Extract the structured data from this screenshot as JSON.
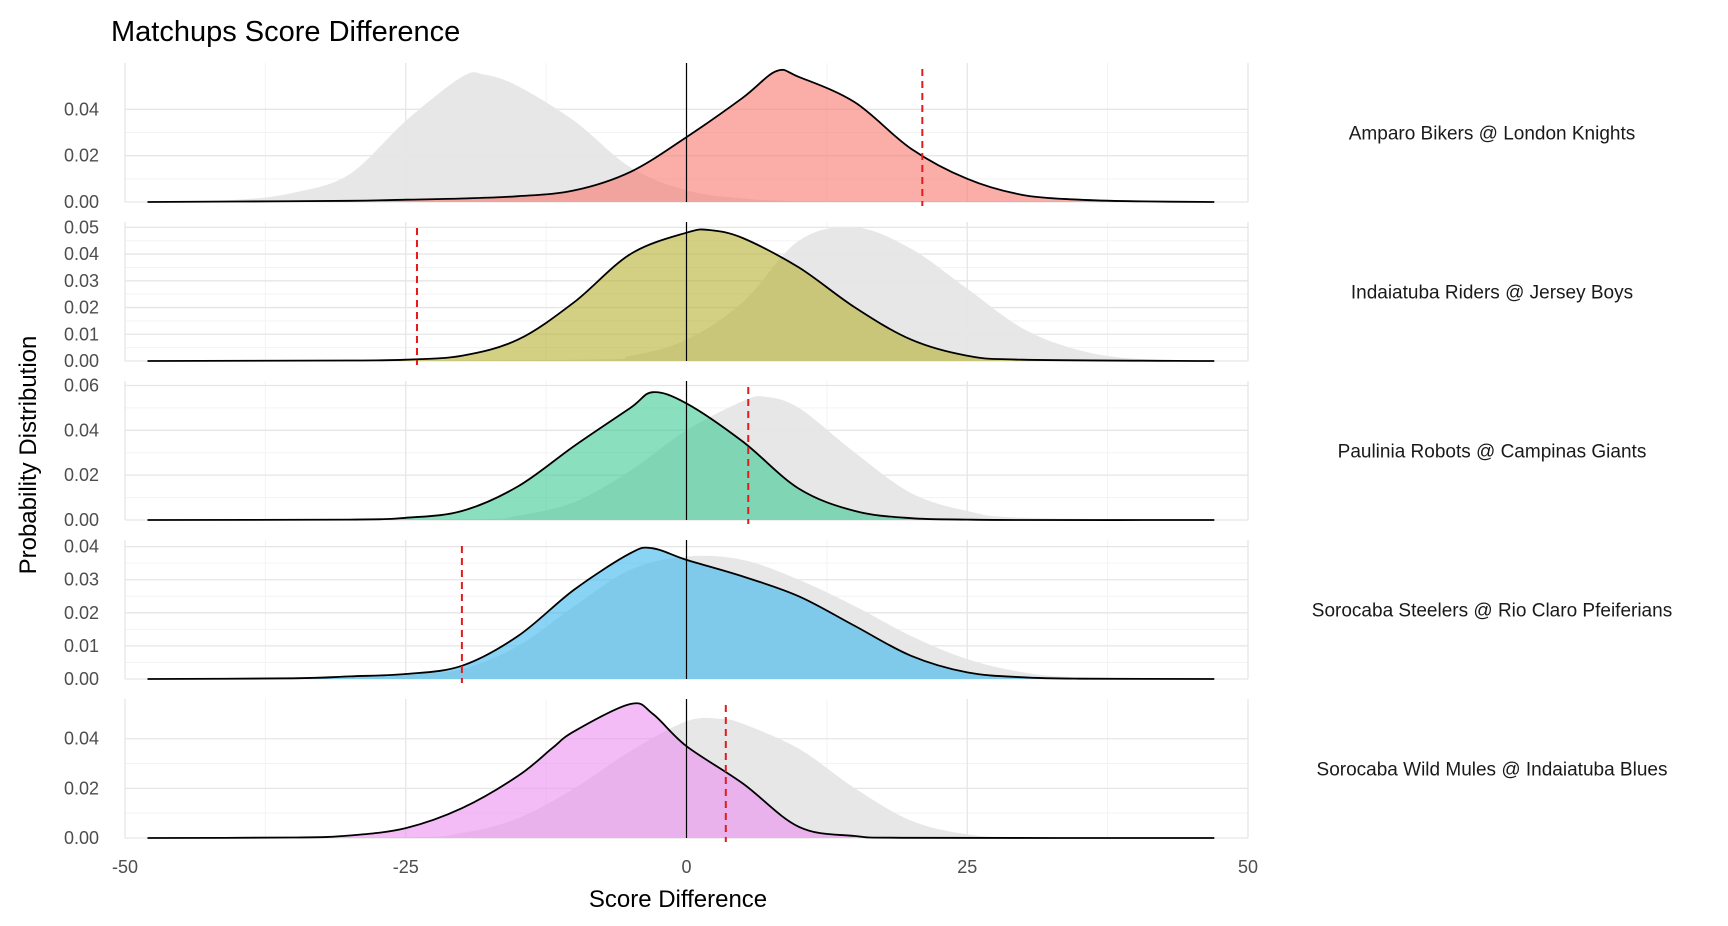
{
  "chart_data": {
    "type": "area",
    "title": "Matchups Score Difference",
    "xlabel": "Score Difference",
    "ylabel": "Probability Distribution",
    "xlim": [
      -50,
      50
    ],
    "x_ticks": [
      -50,
      -25,
      0,
      25,
      50
    ],
    "x_tick_labels": [
      "-50",
      "-25",
      "0",
      "25",
      "50"
    ],
    "zero_line": 0,
    "grid": true,
    "background_color": "#e6e6e6",
    "vline_color": "#e41a1c",
    "panels": [
      {
        "name": "Amparo Bikers @ London Knights",
        "color": "#f8766d",
        "ylim": [
          0,
          0.06
        ],
        "y_ticks": [
          0,
          0.02,
          0.04
        ],
        "y_tick_labels": [
          "0.00",
          "0.02",
          "0.04"
        ],
        "vline": 21,
        "x": [
          -48,
          -40,
          -30,
          -25,
          -20,
          -15,
          -10,
          -5,
          0,
          5,
          8,
          10,
          15,
          20,
          25,
          30,
          35,
          40,
          47
        ],
        "y": [
          0,
          0.0002,
          0.0005,
          0.001,
          0.0015,
          0.0025,
          0.005,
          0.013,
          0.028,
          0.045,
          0.0565,
          0.054,
          0.043,
          0.023,
          0.01,
          0.003,
          0.001,
          0.0003,
          0
        ],
        "background_x": [
          -48,
          -40,
          -35,
          -30,
          -25,
          -20,
          -18,
          -15,
          -10,
          -5,
          0,
          5,
          10,
          15
        ],
        "background_y": [
          0,
          0.001,
          0.004,
          0.012,
          0.035,
          0.054,
          0.055,
          0.05,
          0.035,
          0.015,
          0.005,
          0.0015,
          0.0003,
          0
        ]
      },
      {
        "name": "Indaiatuba Riders @ Jersey Boys",
        "color": "#b8b030",
        "ylim": [
          0,
          0.052
        ],
        "y_ticks": [
          0,
          0.01,
          0.02,
          0.03,
          0.04,
          0.05
        ],
        "y_tick_labels": [
          "0.00",
          "0.01",
          "0.02",
          "0.03",
          "0.04",
          "0.05"
        ],
        "vline": -24,
        "x": [
          -48,
          -30,
          -25,
          -20,
          -15,
          -10,
          -5,
          0,
          2,
          5,
          10,
          15,
          20,
          25,
          30,
          47
        ],
        "y": [
          0,
          0.0002,
          0.0005,
          0.002,
          0.008,
          0.022,
          0.04,
          0.048,
          0.049,
          0.046,
          0.035,
          0.02,
          0.008,
          0.002,
          0.0005,
          0
        ],
        "background_x": [
          -48,
          -10,
          -5,
          0,
          5,
          10,
          15,
          20,
          25,
          30,
          35,
          40,
          47
        ],
        "background_y": [
          0,
          0.0005,
          0.002,
          0.008,
          0.022,
          0.045,
          0.05,
          0.042,
          0.027,
          0.012,
          0.004,
          0.0008,
          0
        ]
      },
      {
        "name": "Paulinia Robots @ Campinas Giants",
        "color": "#3ccb92",
        "ylim": [
          0,
          0.062
        ],
        "y_ticks": [
          0,
          0.02,
          0.04,
          0.06
        ],
        "y_tick_labels": [
          "0.00",
          "0.02",
          "0.04",
          "0.06"
        ],
        "vline": 5.5,
        "x": [
          -48,
          -30,
          -25,
          -20,
          -15,
          -10,
          -5,
          -3,
          0,
          5,
          10,
          15,
          20,
          25,
          30,
          47
        ],
        "y": [
          0,
          0.0002,
          0.001,
          0.004,
          0.015,
          0.033,
          0.05,
          0.057,
          0.052,
          0.035,
          0.014,
          0.004,
          0.0008,
          0.0002,
          0,
          0
        ],
        "background_x": [
          -48,
          -20,
          -15,
          -10,
          -5,
          0,
          5,
          7,
          10,
          15,
          20,
          25,
          30,
          47
        ],
        "background_y": [
          0,
          0.0003,
          0.002,
          0.008,
          0.022,
          0.04,
          0.053,
          0.055,
          0.05,
          0.03,
          0.012,
          0.004,
          0.001,
          0
        ]
      },
      {
        "name": "Sorocaba Steelers @ Rio Claro Pfeiferians",
        "color": "#3ab5ed",
        "ylim": [
          0,
          0.042
        ],
        "y_ticks": [
          0,
          0.01,
          0.02,
          0.03,
          0.04
        ],
        "y_tick_labels": [
          "0.00",
          "0.01",
          "0.02",
          "0.03",
          "0.04"
        ],
        "vline": -20,
        "x": [
          -48,
          -35,
          -30,
          -25,
          -20,
          -15,
          -10,
          -5,
          -3,
          0,
          5,
          10,
          15,
          20,
          25,
          30,
          35,
          47
        ],
        "y": [
          0,
          0.0002,
          0.0008,
          0.0015,
          0.004,
          0.013,
          0.027,
          0.038,
          0.0395,
          0.036,
          0.031,
          0.025,
          0.016,
          0.007,
          0.002,
          0.0005,
          0.0001,
          0
        ],
        "background_x": [
          -48,
          -30,
          -25,
          -20,
          -15,
          -10,
          -5,
          0,
          5,
          10,
          15,
          20,
          25,
          30,
          35,
          47
        ],
        "background_y": [
          0,
          0.0004,
          0.0012,
          0.003,
          0.01,
          0.022,
          0.033,
          0.037,
          0.036,
          0.03,
          0.022,
          0.013,
          0.006,
          0.002,
          0.0005,
          0
        ]
      },
      {
        "name": "Sorocaba Wild Mules @ Indaiatuba Blues",
        "color": "#eb8ff0",
        "ylim": [
          0,
          0.056
        ],
        "y_ticks": [
          0,
          0.02,
          0.04
        ],
        "y_tick_labels": [
          "0.00",
          "0.02",
          "0.04"
        ],
        "vline": 3.5,
        "x": [
          -48,
          -35,
          -30,
          -25,
          -20,
          -15,
          -12,
          -10,
          -5,
          -3,
          0,
          5,
          10,
          15,
          20,
          47
        ],
        "y": [
          0,
          0.0002,
          0.001,
          0.004,
          0.012,
          0.025,
          0.036,
          0.043,
          0.054,
          0.05,
          0.037,
          0.022,
          0.0045,
          0.0008,
          0.0001,
          0
        ],
        "background_x": [
          -48,
          -25,
          -20,
          -15,
          -10,
          -5,
          0,
          3,
          5,
          10,
          15,
          20,
          25,
          30,
          47
        ],
        "background_y": [
          0,
          0.0003,
          0.002,
          0.008,
          0.02,
          0.035,
          0.047,
          0.048,
          0.046,
          0.036,
          0.02,
          0.007,
          0.0015,
          0.0002,
          0
        ]
      }
    ]
  }
}
